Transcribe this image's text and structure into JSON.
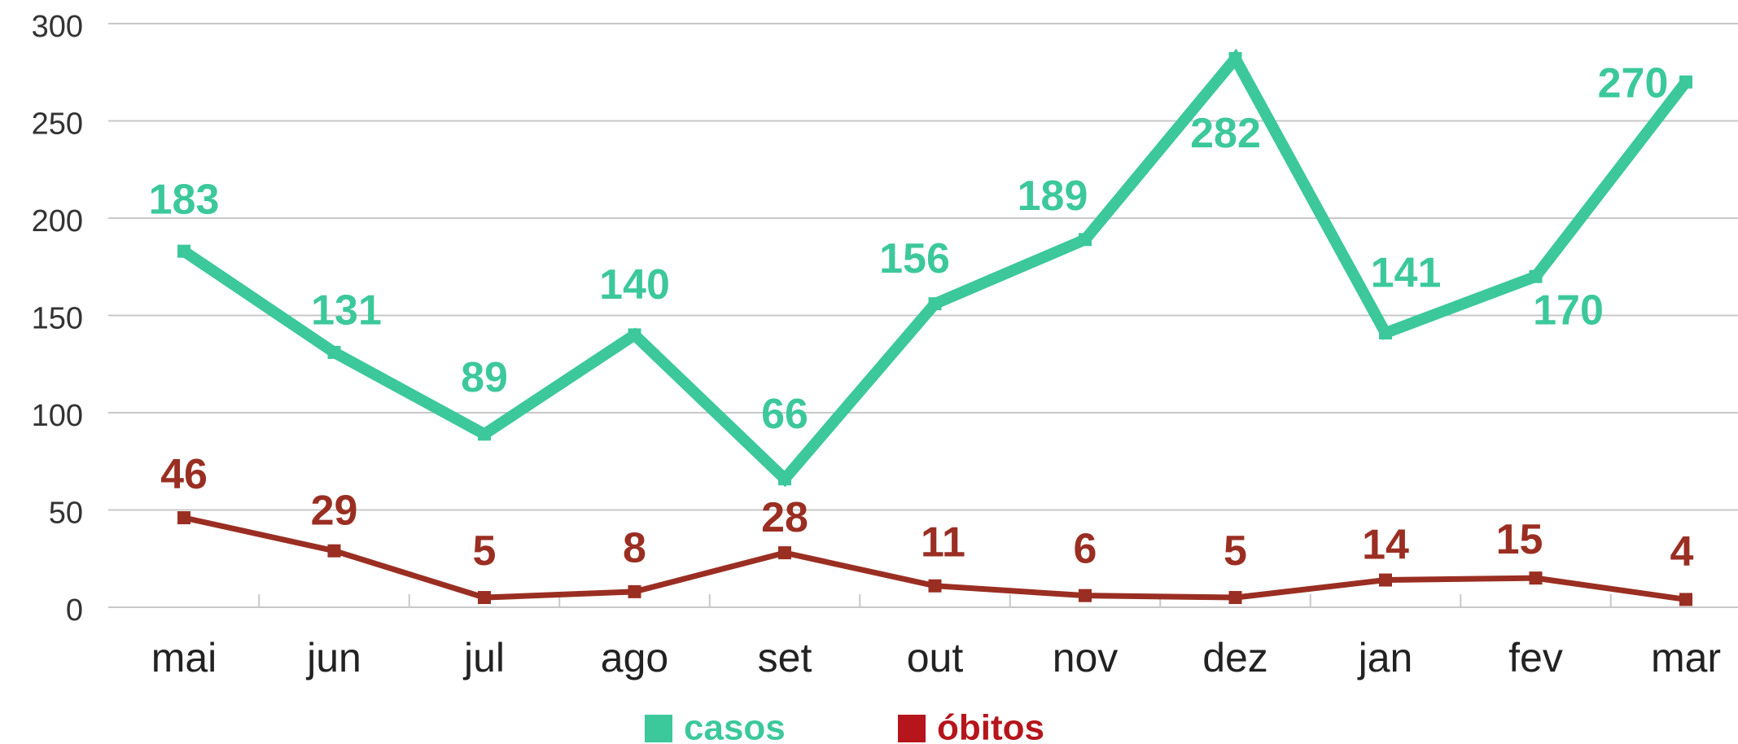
{
  "chart_data": {
    "type": "line",
    "categories": [
      "mai",
      "jun",
      "jul",
      "ago",
      "set",
      "out",
      "nov",
      "dez",
      "jan",
      "fev",
      "mar"
    ],
    "series": [
      {
        "name": "casos",
        "color": "#3cc89b",
        "values": [
          183,
          131,
          89,
          140,
          66,
          156,
          189,
          282,
          141,
          170,
          270
        ]
      },
      {
        "name": "óbitos",
        "color": "#9a2e22",
        "legend_color": "#b5151b",
        "values": [
          46,
          29,
          5,
          8,
          28,
          11,
          6,
          5,
          14,
          15,
          4
        ]
      }
    ],
    "ylim": [
      0,
      300
    ],
    "yticks": [
      0,
      50,
      100,
      150,
      200,
      250,
      300
    ],
    "grid": true,
    "legend": "bottom"
  }
}
